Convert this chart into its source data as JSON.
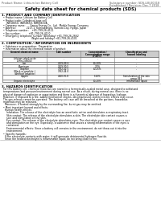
{
  "bg_color": "#ffffff",
  "header_left": "Product Name: Lithium Ion Battery Cell",
  "header_right_line1": "Substance number: SDS-LIB-00018",
  "header_right_line2": "Established / Revision: Dec.7.2018",
  "title": "Safety data sheet for chemical products (SDS)",
  "section1_title": "1. PRODUCT AND COMPANY IDENTIFICATION",
  "section1_lines": [
    "  • Product name: Lithium Ion Battery Cell",
    "  • Product code: Cylindrical-type cell",
    "      INR18650, INR18650, INR18650A",
    "  • Company name:      Sanyo Energy Co., Ltd.  Mobile Energy Company",
    "  • Address:             2217-1  Kamiasahara, Sumoto-City, Hyogo, Japan",
    "  • Telephone number:    +81-799-26-4111",
    "  • Fax number:          +81-799-26-4120",
    "  • Emergency telephone number (Weekday) +81-799-26-2662",
    "                                     (Night and holiday) +81-799-26-4101"
  ],
  "section2_title": "2. COMPOSITION / INFORMATION ON INGREDIENTS",
  "section2_intro": "  • Substance or preparation:  Preparation",
  "section2_table_intro": "  • Information about the chemical nature of product:",
  "table_col_names": [
    "General chemical name",
    "CAS number",
    "Concentration /\nConcentration range\n(0-40%)",
    "Classification and\nhazard labeling"
  ],
  "table_rows": [
    [
      "Lithium cobalt oxide\n(LiMn-CoNiO4)",
      "-",
      "-",
      "-"
    ],
    [
      "Iron",
      "7439-89-6",
      "10-20%",
      "-"
    ],
    [
      "Aluminum",
      "7429-90-5",
      "2-5%",
      "-"
    ],
    [
      "Graphite\n(Black or graphite-)\n(Artificial graphite)",
      "7782-42-5\n7782-44-0",
      "10-25%",
      "-"
    ],
    [
      "Copper",
      "7440-50-8",
      "5-10%",
      "Sensitization of the skin\ngroup R43"
    ],
    [
      "Organic electrolyte",
      "-",
      "10-20%",
      "Inflammable liquid"
    ]
  ],
  "section3_title": "3. HAZARDS IDENTIFICATION",
  "section3_lines": [
    "  For this battery cell, chemical materials are stored in a hermetically-sealed metal case, designed to withstand",
    "  temperatures and pressure/environment during normal use. As a result, during normal use, there is no",
    "  physical danger of explosion or vaporization and there is a theoretical absence of hazardous leakage.",
    "  However, if exposed to a fire, added mechanical shocks, decompressed, violent electric effects may occur.",
    "  The gas release cannot be operated. The battery cell case will be breached at the portions, hazardous",
    "  materials may be released.",
    "    Moreover, if heated strongly by the surrounding fire, burnt gas may be emitted."
  ],
  "section3_bullet1": "  • Most important hazard and effects:",
  "section3_human_title": "    Human health effects:",
  "section3_human_lines": [
    "      Inhalation: The release of the electrolyte has an anesthetic action and stimulates a respiratory tract.",
    "      Skin contact: The release of the electrolyte stimulates a skin. The electrolyte skin contact causes a",
    "      sore and stimulation on the skin.",
    "      Eye contact: The release of the electrolyte stimulates eyes. The electrolyte eye contact causes a sore",
    "      and stimulation on the eye. Especially, a substance that causes a strong inflammation of the eyes is",
    "      contained.",
    "      Environmental effects: Since a battery cell remains in the environment, do not throw out it into the",
    "      environment."
  ],
  "section3_bullet2": "  • Specific hazards:",
  "section3_specific_lines": [
    "    If the electrolyte contacts with water, it will generate detrimental hydrogen fluoride.",
    "    Since the heated electrolyte is inflammable liquid, do not bring close to fire."
  ]
}
